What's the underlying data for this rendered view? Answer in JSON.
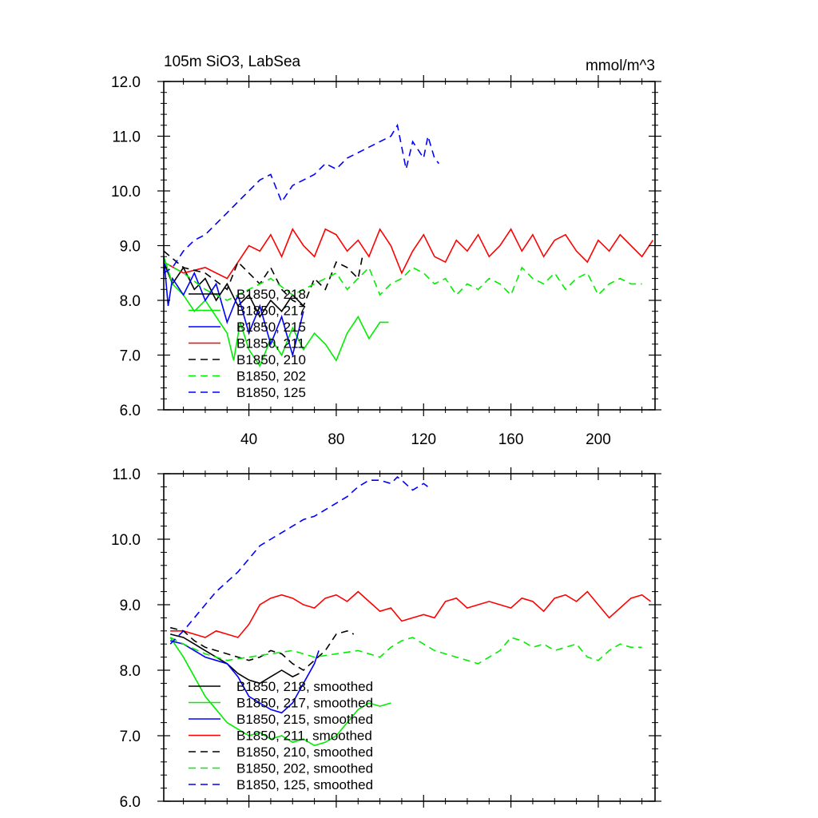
{
  "chart_data": [
    {
      "type": "line",
      "title": "105m SiO3, LabSea",
      "units": "mmol/m^3",
      "xlim": [
        1,
        226
      ],
      "ylim": [
        6.0,
        12.0
      ],
      "xticks": [
        40,
        80,
        120,
        160,
        200
      ],
      "yticks": [
        6.0,
        7.0,
        8.0,
        9.0,
        10.0,
        11.0,
        12.0
      ],
      "xlabel": "",
      "ylabel": "",
      "legend_position": "lower-left",
      "series": [
        {
          "name": "B1850, 218",
          "color": "#000000",
          "dash": "solid",
          "x": [
            1,
            5,
            10,
            15,
            20,
            25,
            30,
            35,
            40,
            45,
            50,
            55,
            60,
            65
          ],
          "y": [
            8.7,
            8.3,
            8.6,
            8.2,
            8.4,
            8.0,
            8.3,
            7.9,
            8.1,
            7.7,
            8.0,
            7.8,
            8.1,
            7.9
          ]
        },
        {
          "name": "B1850, 217",
          "color": "#00ee00",
          "dash": "solid",
          "x": [
            1,
            5,
            10,
            15,
            20,
            25,
            30,
            33,
            36,
            40,
            45,
            50,
            55,
            60,
            65,
            70,
            75,
            80,
            85,
            90,
            95,
            100,
            104
          ],
          "y": [
            8.8,
            8.3,
            8.1,
            7.8,
            8.0,
            7.7,
            7.4,
            6.9,
            7.6,
            7.1,
            6.8,
            7.3,
            7.0,
            7.5,
            7.1,
            7.4,
            7.2,
            6.9,
            7.4,
            7.7,
            7.3,
            7.6,
            7.6
          ]
        },
        {
          "name": "B1850, 215",
          "color": "#0000ff",
          "dash": "solid",
          "x": [
            1,
            3,
            5,
            10,
            15,
            20,
            25,
            30,
            35,
            40,
            45,
            50,
            55,
            60,
            65
          ],
          "y": [
            8.8,
            7.9,
            8.4,
            8.1,
            8.5,
            8.0,
            8.3,
            7.6,
            8.1,
            7.4,
            7.9,
            7.2,
            7.7,
            7.0,
            7.8
          ]
        },
        {
          "name": "B1850, 211",
          "color": "#ff0000",
          "dash": "solid",
          "x": [
            1,
            10,
            20,
            30,
            40,
            45,
            50,
            55,
            60,
            65,
            70,
            75,
            80,
            85,
            90,
            95,
            100,
            105,
            110,
            115,
            120,
            125,
            130,
            135,
            140,
            145,
            150,
            155,
            160,
            165,
            170,
            175,
            180,
            185,
            190,
            195,
            200,
            205,
            210,
            215,
            220,
            225
          ],
          "y": [
            8.7,
            8.5,
            8.6,
            8.4,
            9.0,
            8.9,
            9.2,
            8.8,
            9.3,
            9.0,
            8.8,
            9.3,
            9.2,
            8.9,
            9.1,
            8.8,
            9.3,
            9.0,
            8.5,
            8.9,
            9.2,
            8.8,
            8.7,
            9.1,
            8.9,
            9.2,
            8.8,
            9.0,
            9.3,
            8.9,
            9.2,
            8.8,
            9.1,
            9.2,
            8.9,
            8.7,
            9.1,
            8.9,
            9.2,
            9.0,
            8.8,
            9.1
          ]
        },
        {
          "name": "B1850, 210",
          "color": "#000000",
          "dash": "dashed",
          "x": [
            1,
            10,
            20,
            30,
            35,
            40,
            45,
            50,
            55,
            60,
            65,
            70,
            75,
            80,
            85,
            90,
            92
          ],
          "y": [
            8.9,
            8.6,
            8.5,
            8.2,
            8.7,
            8.5,
            8.3,
            8.6,
            8.2,
            8.0,
            7.9,
            8.4,
            8.2,
            8.7,
            8.6,
            8.4,
            8.8
          ]
        },
        {
          "name": "B1850, 202",
          "color": "#00ee00",
          "dash": "dashed",
          "x": [
            1,
            10,
            20,
            30,
            40,
            50,
            60,
            70,
            80,
            85,
            90,
            95,
            100,
            105,
            110,
            115,
            120,
            125,
            130,
            135,
            140,
            145,
            150,
            155,
            160,
            165,
            170,
            175,
            180,
            185,
            190,
            195,
            200,
            205,
            210,
            215,
            220
          ],
          "y": [
            8.7,
            8.5,
            8.2,
            8.0,
            8.2,
            8.4,
            8.1,
            8.3,
            8.5,
            8.2,
            8.4,
            8.6,
            8.1,
            8.3,
            8.4,
            8.6,
            8.5,
            8.3,
            8.4,
            8.1,
            8.3,
            8.2,
            8.4,
            8.3,
            8.1,
            8.6,
            8.4,
            8.3,
            8.5,
            8.2,
            8.4,
            8.5,
            8.1,
            8.3,
            8.4,
            8.3,
            8.3
          ]
        },
        {
          "name": "B1850, 125",
          "color": "#0000ff",
          "dash": "dashed",
          "x": [
            1,
            5,
            10,
            15,
            20,
            25,
            30,
            35,
            40,
            45,
            50,
            55,
            60,
            65,
            70,
            75,
            80,
            85,
            90,
            95,
            100,
            105,
            108,
            110,
            112,
            115,
            120,
            122,
            125,
            127
          ],
          "y": [
            8.5,
            8.6,
            8.9,
            9.1,
            9.2,
            9.4,
            9.6,
            9.8,
            10.0,
            10.2,
            10.3,
            9.8,
            10.1,
            10.2,
            10.3,
            10.5,
            10.4,
            10.6,
            10.7,
            10.8,
            10.9,
            11.0,
            11.2,
            10.8,
            10.4,
            10.9,
            10.6,
            11.0,
            10.6,
            10.5
          ]
        }
      ]
    },
    {
      "type": "line",
      "title": "",
      "xlim": [
        1,
        226
      ],
      "ylim": [
        6.0,
        11.0
      ],
      "yticks": [
        6.0,
        7.0,
        8.0,
        9.0,
        10.0,
        11.0
      ],
      "xlabel": "",
      "ylabel": "",
      "legend_position": "lower-left",
      "series": [
        {
          "name": "B1850, 218, smoothed",
          "color": "#000000",
          "dash": "solid",
          "x": [
            4,
            10,
            15,
            20,
            25,
            30,
            35,
            40,
            45,
            50,
            55,
            60,
            63
          ],
          "y": [
            8.55,
            8.5,
            8.4,
            8.3,
            8.2,
            8.1,
            7.95,
            7.85,
            7.8,
            7.9,
            8.0,
            7.9,
            7.95
          ]
        },
        {
          "name": "B1850, 217, smoothed",
          "color": "#00ee00",
          "dash": "solid",
          "x": [
            4,
            10,
            15,
            20,
            25,
            30,
            35,
            40,
            45,
            50,
            55,
            60,
            65,
            70,
            75,
            80,
            85,
            90,
            95,
            100,
            105
          ],
          "y": [
            8.5,
            8.2,
            7.9,
            7.6,
            7.4,
            7.2,
            7.1,
            7.0,
            7.05,
            6.95,
            7.0,
            6.9,
            6.95,
            6.85,
            6.9,
            7.0,
            7.2,
            7.4,
            7.5,
            7.45,
            7.5
          ]
        },
        {
          "name": "B1850, 215, smoothed",
          "color": "#0000ff",
          "dash": "solid",
          "x": [
            4,
            10,
            15,
            20,
            25,
            30,
            35,
            40,
            45,
            50,
            55,
            60,
            65,
            70,
            72
          ],
          "y": [
            8.45,
            8.4,
            8.3,
            8.2,
            8.15,
            8.1,
            7.9,
            7.6,
            7.5,
            7.4,
            7.35,
            7.5,
            7.8,
            8.1,
            8.3
          ]
        },
        {
          "name": "B1850, 211, smoothed",
          "color": "#ff0000",
          "dash": "solid",
          "x": [
            4,
            10,
            15,
            20,
            25,
            30,
            35,
            40,
            45,
            50,
            55,
            60,
            65,
            70,
            75,
            80,
            85,
            90,
            95,
            100,
            105,
            110,
            115,
            120,
            125,
            130,
            135,
            140,
            145,
            150,
            155,
            160,
            165,
            170,
            175,
            180,
            185,
            190,
            195,
            200,
            205,
            210,
            215,
            220,
            224
          ],
          "y": [
            8.6,
            8.6,
            8.55,
            8.5,
            8.6,
            8.55,
            8.5,
            8.7,
            9.0,
            9.1,
            9.15,
            9.1,
            9.0,
            8.95,
            9.1,
            9.15,
            9.05,
            9.2,
            9.05,
            8.9,
            8.95,
            8.75,
            8.8,
            8.85,
            8.8,
            9.05,
            9.1,
            8.95,
            9.0,
            9.05,
            9.0,
            8.95,
            9.1,
            9.05,
            8.9,
            9.1,
            9.15,
            9.05,
            9.2,
            9.0,
            8.8,
            8.95,
            9.1,
            9.15,
            9.05
          ]
        },
        {
          "name": "B1850, 210, smoothed",
          "color": "#000000",
          "dash": "dashed",
          "x": [
            4,
            10,
            15,
            20,
            25,
            30,
            35,
            40,
            45,
            50,
            55,
            60,
            65,
            70,
            75,
            80,
            85,
            88
          ],
          "y": [
            8.65,
            8.6,
            8.45,
            8.35,
            8.3,
            8.25,
            8.2,
            8.15,
            8.2,
            8.3,
            8.25,
            8.1,
            8.0,
            8.15,
            8.3,
            8.55,
            8.6,
            8.55
          ]
        },
        {
          "name": "B1850, 202, smoothed",
          "color": "#00ee00",
          "dash": "dashed",
          "x": [
            4,
            10,
            20,
            30,
            40,
            50,
            60,
            70,
            80,
            90,
            100,
            105,
            110,
            115,
            120,
            125,
            130,
            135,
            140,
            145,
            150,
            155,
            160,
            165,
            170,
            175,
            180,
            185,
            190,
            195,
            200,
            205,
            210,
            215,
            220
          ],
          "y": [
            8.5,
            8.4,
            8.25,
            8.15,
            8.2,
            8.25,
            8.3,
            8.2,
            8.25,
            8.3,
            8.2,
            8.35,
            8.45,
            8.5,
            8.4,
            8.3,
            8.25,
            8.2,
            8.15,
            8.1,
            8.2,
            8.3,
            8.5,
            8.45,
            8.35,
            8.4,
            8.3,
            8.35,
            8.4,
            8.2,
            8.15,
            8.3,
            8.4,
            8.35,
            8.35
          ]
        },
        {
          "name": "B1850, 125, smoothed",
          "color": "#0000ff",
          "dash": "dashed",
          "x": [
            4,
            10,
            15,
            20,
            25,
            30,
            35,
            40,
            45,
            50,
            55,
            60,
            65,
            70,
            75,
            80,
            85,
            90,
            95,
            100,
            105,
            108,
            110,
            115,
            120,
            122
          ],
          "y": [
            8.4,
            8.6,
            8.8,
            9.0,
            9.2,
            9.35,
            9.5,
            9.7,
            9.9,
            10.0,
            10.1,
            10.2,
            10.3,
            10.35,
            10.45,
            10.55,
            10.65,
            10.8,
            10.9,
            10.9,
            10.85,
            10.95,
            10.9,
            10.75,
            10.85,
            10.8
          ]
        }
      ]
    }
  ]
}
